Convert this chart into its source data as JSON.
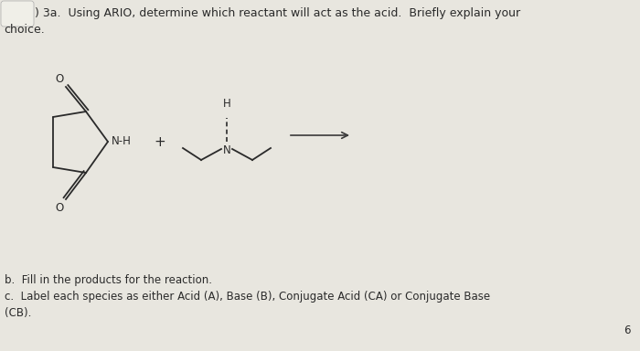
{
  "background_color": "#e8e6df",
  "text_color": "#2a2a2a",
  "title_line1": ") 3a.  Using ARIO, determine which reactant will act as the acid.  Briefly explain your",
  "title_line2": "choice.",
  "footnote_b": "b.  Fill in the products for the reaction.",
  "footnote_c": "c.  Label each species as either Acid (A), Base (B), Conjugate Acid (CA) or Conjugate Base",
  "footnote_c2": "(CB).",
  "page_number": "6",
  "font_size_title": 9.0,
  "font_size_chem": 8.5,
  "font_size_footnote": 8.5,
  "checkbox_color": "#f0efe8",
  "checkbox_edge": "#aaaaaa",
  "ring_color": "#2a2a2a",
  "arrow_color": "#3a3a3a"
}
